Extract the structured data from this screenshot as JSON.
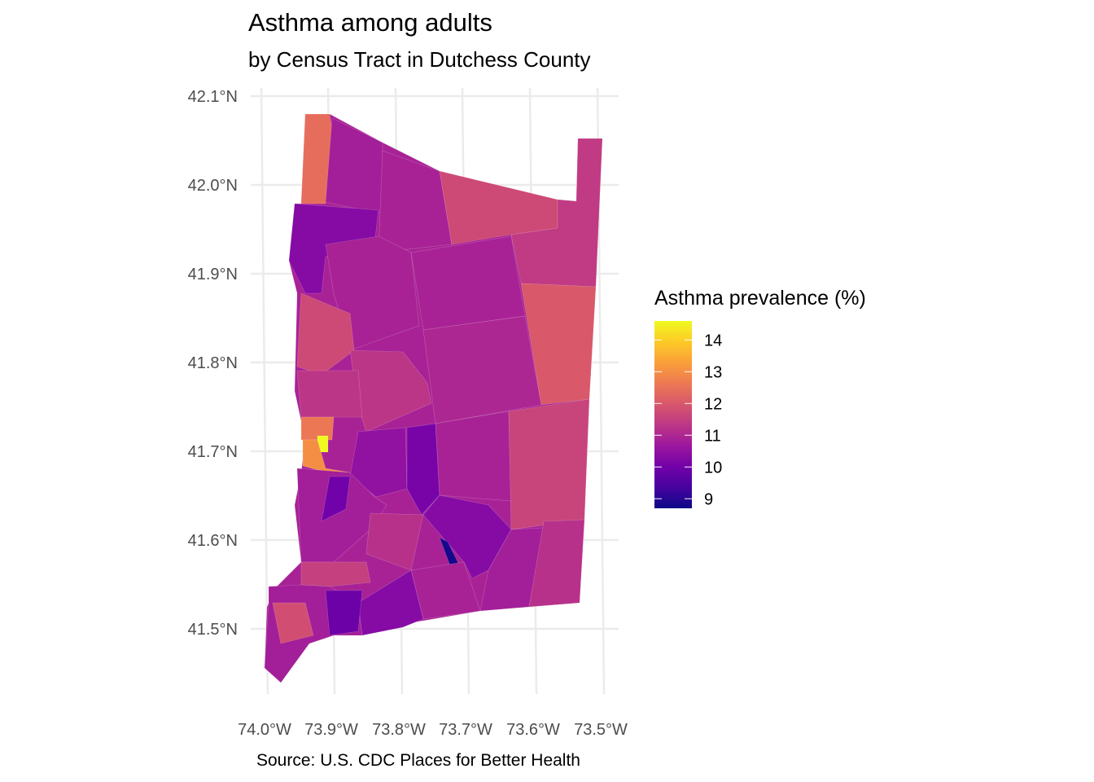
{
  "chart_data": {
    "type": "choropleth",
    "title": "Asthma among adults",
    "subtitle": "by Census Tract in Dutchess County",
    "caption": "Source: U.S. CDC Places for Better Health",
    "x_ticks": [
      "74.0°W",
      "73.9°W",
      "73.8°W",
      "73.7°W",
      "73.6°W",
      "73.5°W"
    ],
    "y_ticks": [
      "42.1°N",
      "42.0°N",
      "41.9°N",
      "41.8°N",
      "41.7°N",
      "41.6°N",
      "41.5°N"
    ],
    "xlim": [
      -74.0,
      -73.5
    ],
    "ylim": [
      41.44,
      42.08
    ],
    "legend": {
      "title": "Asthma prevalence (%)",
      "labels": [
        "14",
        "13",
        "12",
        "11",
        "10",
        "9"
      ],
      "range": [
        8.7,
        14.6
      ],
      "palette": "plasma",
      "placement": "right"
    },
    "tract_values": [
      10.9,
      12.4,
      10.8,
      10.9,
      11.7,
      11.4,
      12.0,
      10.3,
      10.9,
      10.9,
      11.0,
      11.7,
      11.3,
      11.3,
      12.6,
      10.9,
      11.6,
      14.6,
      13.0,
      10.5,
      10.1,
      10.8,
      10.0,
      10.3,
      8.8,
      11.2,
      10.8,
      11.2,
      10.9,
      11.5,
      10.8,
      10.3,
      11.8,
      9.9
    ]
  }
}
